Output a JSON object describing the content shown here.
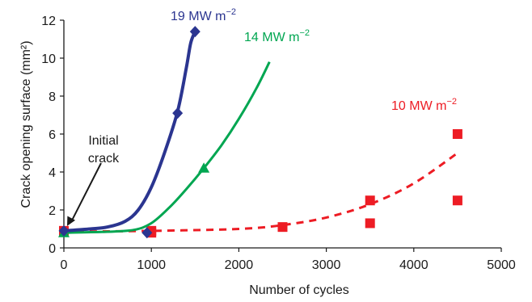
{
  "chart_data": {
    "type": "scatter",
    "xlabel": "Number of cycles",
    "ylabel": "Crack opening surface (mm²)",
    "xlim": [
      0,
      5000
    ],
    "ylim": [
      0,
      12
    ],
    "xticks": [
      0,
      1000,
      2000,
      3000,
      4000,
      5000
    ],
    "yticks": [
      0,
      2,
      4,
      6,
      8,
      10,
      12
    ],
    "grid": false,
    "series": [
      {
        "name": "19 MW m⁻²",
        "color": "#2b3590",
        "marker": "diamond",
        "line_style": "solid",
        "points": [
          [
            0,
            0.9
          ],
          [
            950,
            0.8
          ],
          [
            1300,
            7.1
          ],
          [
            1500,
            11.4
          ]
        ],
        "trend": [
          [
            0,
            0.9
          ],
          [
            300,
            1.0
          ],
          [
            500,
            1.1
          ],
          [
            700,
            1.4
          ],
          [
            850,
            2.0
          ],
          [
            1000,
            3.2
          ],
          [
            1150,
            5.0
          ],
          [
            1300,
            7.2
          ],
          [
            1400,
            9.5
          ],
          [
            1450,
            10.8
          ],
          [
            1500,
            11.4
          ]
        ]
      },
      {
        "name": "14 MW m⁻²",
        "color": "#00a651",
        "marker": "triangle",
        "line_style": "solid",
        "points": [
          [
            0,
            0.8
          ],
          [
            1600,
            4.2
          ]
        ],
        "trend": [
          [
            0,
            0.8
          ],
          [
            500,
            0.85
          ],
          [
            800,
            0.95
          ],
          [
            1000,
            1.3
          ],
          [
            1200,
            2.1
          ],
          [
            1400,
            3.1
          ],
          [
            1600,
            4.2
          ],
          [
            1800,
            5.4
          ],
          [
            2000,
            6.8
          ],
          [
            2200,
            8.4
          ],
          [
            2350,
            9.8
          ]
        ]
      },
      {
        "name": "10 MW m⁻²",
        "color": "#ed1c24",
        "marker": "square",
        "line_style": "dashed",
        "points": [
          [
            0,
            0.9
          ],
          [
            1000,
            0.8
          ],
          [
            1000,
            0.9
          ],
          [
            2500,
            1.1
          ],
          [
            3500,
            2.5
          ],
          [
            3500,
            1.3
          ],
          [
            4500,
            6.0
          ],
          [
            4500,
            2.5
          ]
        ],
        "trend": [
          [
            0,
            0.85
          ],
          [
            1000,
            0.9
          ],
          [
            2000,
            1.0
          ],
          [
            2500,
            1.2
          ],
          [
            3000,
            1.6
          ],
          [
            3500,
            2.3
          ],
          [
            4000,
            3.4
          ],
          [
            4500,
            5.0
          ]
        ]
      }
    ],
    "annotations": [
      {
        "text": "19 MW m",
        "sup": "−2",
        "color": "#2b3590"
      },
      {
        "text": "14 MW m",
        "sup": "−2",
        "color": "#00a651"
      },
      {
        "text": "10 MW m",
        "sup": "−2",
        "color": "#ed1c24"
      },
      {
        "lines": [
          "Initial",
          "crack"
        ],
        "color": "#1a1a1a",
        "arrow_target": [
          0,
          0.9
        ]
      }
    ]
  }
}
